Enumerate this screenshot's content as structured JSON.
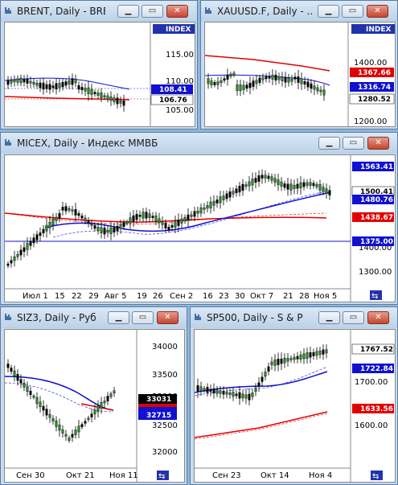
{
  "windows": {
    "brent": {
      "title": "BRENT, Daily - BRE...",
      "index_tag": "INDEX",
      "y_ticks": [
        "115.00",
        "110.00",
        "105.00"
      ],
      "price_labels": [
        "108.41",
        "106.76"
      ]
    },
    "gold": {
      "title": "XAUUSD.F, Daily - ...",
      "index_tag": "INDEX",
      "y_ticks": [
        "1400.00",
        "1300.00",
        "1200.00"
      ],
      "price_labels": [
        "1367.66",
        "1316.74",
        "1280.52"
      ]
    },
    "micex": {
      "title": "MICEX, Daily - Индекс ММВБ",
      "y_ticks": [
        "1400.00",
        "1300.00"
      ],
      "price_labels": [
        "1563.41",
        "1500.41",
        "1480.76",
        "1438.67",
        "1375.00"
      ],
      "x_labels": [
        "Июл 1",
        "15",
        "22",
        "29",
        "Авг 5",
        "19",
        "26",
        "Сен 2",
        "16",
        "23",
        "30",
        "Окт 7",
        "21",
        "28",
        "Ноя 5"
      ]
    },
    "siz3": {
      "title": "SIZ3, Daily - Руб...",
      "y_ticks": [
        "34000",
        "33500",
        "33000",
        "32500",
        "32000"
      ],
      "price_labels": [
        "33031",
        "32715"
      ],
      "x_labels": [
        "Сен 30",
        "Окт 21",
        "Ноя 11"
      ]
    },
    "sp500": {
      "title": "SP500, Daily - S & P 5...",
      "y_ticks": [
        "1700.00",
        "1600.00"
      ],
      "price_labels": [
        "1767.52",
        "1722.84",
        "1633.56"
      ],
      "x_labels": [
        "Сен 23",
        "Окт 14",
        "Ноя 4"
      ]
    }
  },
  "controls": {
    "minimize": "▁",
    "restore": "▭",
    "close": "✕"
  },
  "icons": {
    "window": "chart-icon",
    "scroll": "scroll-end-icon",
    "scroll_glyph": "⇆"
  },
  "colors": {
    "up": "#2a8a2a",
    "down": "#000000",
    "ma_red": "#e00000",
    "ma_blue": "#1010d0",
    "bg": "#8fb6dc"
  }
}
